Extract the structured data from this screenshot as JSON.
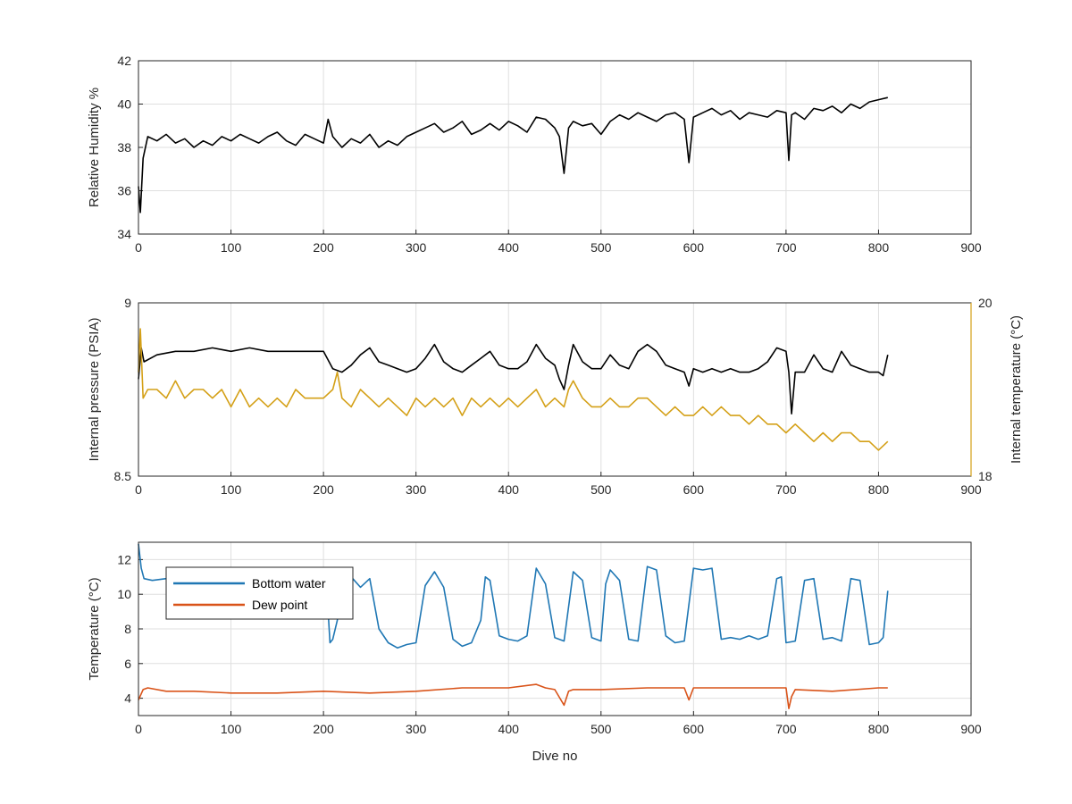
{
  "colors": {
    "humidity": "#000000",
    "pressure": "#000000",
    "internal_temperature": "#d4a017",
    "bottom_water": "#1f77b4",
    "dew_point": "#d95319"
  },
  "chart_data": [
    {
      "type": "line",
      "xlabel": "",
      "ylabel": "Relative Humidity %",
      "xlim": [
        0,
        900
      ],
      "ylim": [
        34,
        42
      ],
      "xticks": [
        "0",
        "100",
        "200",
        "300",
        "400",
        "500",
        "600",
        "700",
        "800",
        "900"
      ],
      "yticks": [
        "34",
        "36",
        "38",
        "40",
        "42"
      ],
      "grid": true,
      "series": [
        {
          "name": "",
          "x": [
            0,
            2,
            5,
            10,
            20,
            30,
            40,
            50,
            60,
            70,
            80,
            90,
            100,
            110,
            120,
            130,
            140,
            150,
            160,
            170,
            180,
            190,
            200,
            205,
            210,
            220,
            230,
            240,
            250,
            260,
            270,
            280,
            290,
            300,
            310,
            320,
            330,
            340,
            350,
            360,
            370,
            380,
            390,
            400,
            410,
            420,
            430,
            440,
            450,
            455,
            460,
            465,
            470,
            480,
            490,
            500,
            510,
            520,
            530,
            540,
            550,
            560,
            570,
            580,
            590,
            595,
            600,
            610,
            620,
            630,
            640,
            650,
            660,
            670,
            680,
            690,
            700,
            703,
            706,
            710,
            720,
            730,
            740,
            750,
            760,
            770,
            780,
            790,
            800,
            810
          ],
          "y": [
            36.2,
            35.0,
            37.5,
            38.5,
            38.3,
            38.6,
            38.2,
            38.4,
            38.0,
            38.3,
            38.1,
            38.5,
            38.3,
            38.6,
            38.4,
            38.2,
            38.5,
            38.7,
            38.3,
            38.1,
            38.6,
            38.4,
            38.2,
            39.3,
            38.5,
            38.0,
            38.4,
            38.2,
            38.6,
            38.0,
            38.3,
            38.1,
            38.5,
            38.7,
            38.9,
            39.1,
            38.7,
            38.9,
            39.2,
            38.6,
            38.8,
            39.1,
            38.8,
            39.2,
            39.0,
            38.7,
            39.4,
            39.3,
            38.9,
            38.5,
            36.8,
            38.9,
            39.2,
            39.0,
            39.1,
            38.6,
            39.2,
            39.5,
            39.3,
            39.6,
            39.4,
            39.2,
            39.5,
            39.6,
            39.3,
            37.3,
            39.4,
            39.6,
            39.8,
            39.5,
            39.7,
            39.3,
            39.6,
            39.5,
            39.4,
            39.7,
            39.6,
            37.4,
            39.5,
            39.6,
            39.3,
            39.8,
            39.7,
            39.9,
            39.6,
            40.0,
            39.8,
            40.1,
            40.2,
            40.3
          ]
        }
      ]
    },
    {
      "type": "line",
      "xlabel": "",
      "ylabel": "Internal pressure (PSIA)",
      "ylabel_right": "Internal temperature (°C)",
      "xlim": [
        0,
        900
      ],
      "ylim": [
        8.5,
        9
      ],
      "ylim_right": [
        18,
        20
      ],
      "xticks": [
        "0",
        "100",
        "200",
        "300",
        "400",
        "500",
        "600",
        "700",
        "800",
        "900"
      ],
      "yticks": [
        "8.5",
        "9"
      ],
      "yticks_right": [
        "18",
        "20"
      ],
      "grid": true,
      "series": [
        {
          "name": "",
          "axis": "left",
          "x": [
            0,
            3,
            6,
            20,
            40,
            60,
            80,
            100,
            120,
            140,
            160,
            180,
            200,
            210,
            220,
            230,
            240,
            250,
            260,
            270,
            280,
            290,
            300,
            310,
            320,
            330,
            340,
            350,
            360,
            370,
            380,
            390,
            400,
            410,
            420,
            430,
            440,
            450,
            455,
            460,
            465,
            470,
            480,
            490,
            500,
            510,
            520,
            530,
            540,
            550,
            560,
            570,
            580,
            590,
            595,
            600,
            610,
            620,
            630,
            640,
            650,
            660,
            670,
            680,
            690,
            700,
            703,
            706,
            710,
            720,
            730,
            740,
            750,
            760,
            770,
            780,
            790,
            800,
            805,
            810
          ],
          "y": [
            8.78,
            8.87,
            8.83,
            8.85,
            8.86,
            8.86,
            8.87,
            8.86,
            8.87,
            8.86,
            8.86,
            8.86,
            8.86,
            8.81,
            8.8,
            8.82,
            8.85,
            8.87,
            8.83,
            8.82,
            8.81,
            8.8,
            8.81,
            8.84,
            8.88,
            8.83,
            8.81,
            8.8,
            8.82,
            8.84,
            8.86,
            8.82,
            8.81,
            8.81,
            8.83,
            8.88,
            8.84,
            8.82,
            8.78,
            8.75,
            8.82,
            8.88,
            8.83,
            8.81,
            8.81,
            8.85,
            8.82,
            8.81,
            8.86,
            8.88,
            8.86,
            8.82,
            8.81,
            8.8,
            8.76,
            8.81,
            8.8,
            8.81,
            8.8,
            8.81,
            8.8,
            8.8,
            8.81,
            8.83,
            8.87,
            8.86,
            8.8,
            8.68,
            8.8,
            8.8,
            8.85,
            8.81,
            8.8,
            8.86,
            8.82,
            8.81,
            8.8,
            8.8,
            8.79,
            8.85
          ]
        },
        {
          "name": "",
          "axis": "right",
          "x": [
            0,
            2,
            5,
            10,
            20,
            30,
            40,
            50,
            60,
            70,
            80,
            90,
            100,
            110,
            120,
            130,
            140,
            150,
            160,
            170,
            180,
            190,
            200,
            210,
            215,
            220,
            230,
            240,
            250,
            260,
            270,
            280,
            290,
            300,
            310,
            320,
            330,
            340,
            350,
            360,
            370,
            380,
            390,
            400,
            410,
            420,
            430,
            440,
            450,
            460,
            465,
            470,
            480,
            490,
            500,
            510,
            520,
            530,
            540,
            550,
            560,
            570,
            580,
            590,
            600,
            610,
            620,
            630,
            640,
            650,
            660,
            670,
            680,
            690,
            700,
            710,
            720,
            730,
            740,
            750,
            760,
            770,
            780,
            790,
            800,
            810
          ],
          "y": [
            19.2,
            19.7,
            18.9,
            19.0,
            19.0,
            18.9,
            19.1,
            18.9,
            19.0,
            19.0,
            18.9,
            19.0,
            18.8,
            19.0,
            18.8,
            18.9,
            18.8,
            18.9,
            18.8,
            19.0,
            18.9,
            18.9,
            18.9,
            19.0,
            19.2,
            18.9,
            18.8,
            19.0,
            18.9,
            18.8,
            18.9,
            18.8,
            18.7,
            18.9,
            18.8,
            18.9,
            18.8,
            18.9,
            18.7,
            18.9,
            18.8,
            18.9,
            18.8,
            18.9,
            18.8,
            18.9,
            19.0,
            18.8,
            18.9,
            18.8,
            19.0,
            19.1,
            18.9,
            18.8,
            18.8,
            18.9,
            18.8,
            18.8,
            18.9,
            18.9,
            18.8,
            18.7,
            18.8,
            18.7,
            18.7,
            18.8,
            18.7,
            18.8,
            18.7,
            18.7,
            18.6,
            18.7,
            18.6,
            18.6,
            18.5,
            18.6,
            18.5,
            18.4,
            18.5,
            18.4,
            18.5,
            18.5,
            18.4,
            18.4,
            18.3,
            18.4
          ]
        }
      ]
    },
    {
      "type": "line",
      "xlabel": "Dive no",
      "ylabel": "Temperature (°C)",
      "xlim": [
        0,
        900
      ],
      "ylim": [
        3,
        13
      ],
      "xticks": [
        "0",
        "100",
        "200",
        "300",
        "400",
        "500",
        "600",
        "700",
        "800",
        "900"
      ],
      "yticks": [
        "4",
        "6",
        "8",
        "10",
        "12"
      ],
      "grid": true,
      "legend": "top-left",
      "series": [
        {
          "name": "Bottom water",
          "x": [
            0,
            3,
            6,
            15,
            30,
            60,
            100,
            140,
            180,
            200,
            205,
            207,
            210,
            215,
            220,
            230,
            240,
            250,
            260,
            270,
            280,
            290,
            300,
            310,
            320,
            330,
            340,
            350,
            360,
            370,
            375,
            380,
            390,
            400,
            410,
            420,
            430,
            440,
            450,
            460,
            470,
            480,
            490,
            500,
            505,
            510,
            520,
            530,
            540,
            550,
            560,
            570,
            580,
            590,
            600,
            610,
            620,
            630,
            640,
            650,
            660,
            670,
            680,
            690,
            695,
            700,
            710,
            720,
            730,
            740,
            750,
            760,
            770,
            780,
            790,
            800,
            805,
            810
          ],
          "y": [
            12.9,
            11.5,
            10.9,
            10.8,
            10.9,
            10.8,
            10.8,
            10.8,
            10.8,
            10.7,
            9.0,
            7.2,
            7.4,
            8.5,
            10.5,
            11.0,
            10.4,
            10.9,
            8.0,
            7.2,
            6.9,
            7.1,
            7.2,
            10.5,
            11.3,
            10.4,
            7.4,
            7.0,
            7.2,
            8.5,
            11.0,
            10.8,
            7.6,
            7.4,
            7.3,
            7.6,
            11.5,
            10.6,
            7.5,
            7.3,
            11.3,
            10.8,
            7.5,
            7.3,
            10.6,
            11.4,
            10.8,
            7.4,
            7.3,
            11.6,
            11.4,
            7.6,
            7.2,
            7.3,
            11.5,
            11.4,
            11.5,
            7.4,
            7.5,
            7.4,
            7.6,
            7.4,
            7.6,
            10.9,
            11.0,
            7.2,
            7.3,
            10.8,
            10.9,
            7.4,
            7.5,
            7.3,
            10.9,
            10.8,
            7.1,
            7.2,
            7.5,
            10.2
          ]
        },
        {
          "name": "Dew point",
          "x": [
            0,
            5,
            10,
            30,
            60,
            100,
            150,
            200,
            250,
            300,
            350,
            400,
            430,
            440,
            450,
            460,
            465,
            470,
            500,
            550,
            590,
            595,
            600,
            650,
            700,
            703,
            706,
            710,
            750,
            800,
            810
          ],
          "y": [
            3.9,
            4.5,
            4.6,
            4.4,
            4.4,
            4.3,
            4.3,
            4.4,
            4.3,
            4.4,
            4.6,
            4.6,
            4.8,
            4.6,
            4.5,
            3.6,
            4.4,
            4.5,
            4.5,
            4.6,
            4.6,
            3.9,
            4.6,
            4.6,
            4.6,
            3.4,
            4.1,
            4.5,
            4.4,
            4.6,
            4.6
          ]
        }
      ]
    }
  ]
}
